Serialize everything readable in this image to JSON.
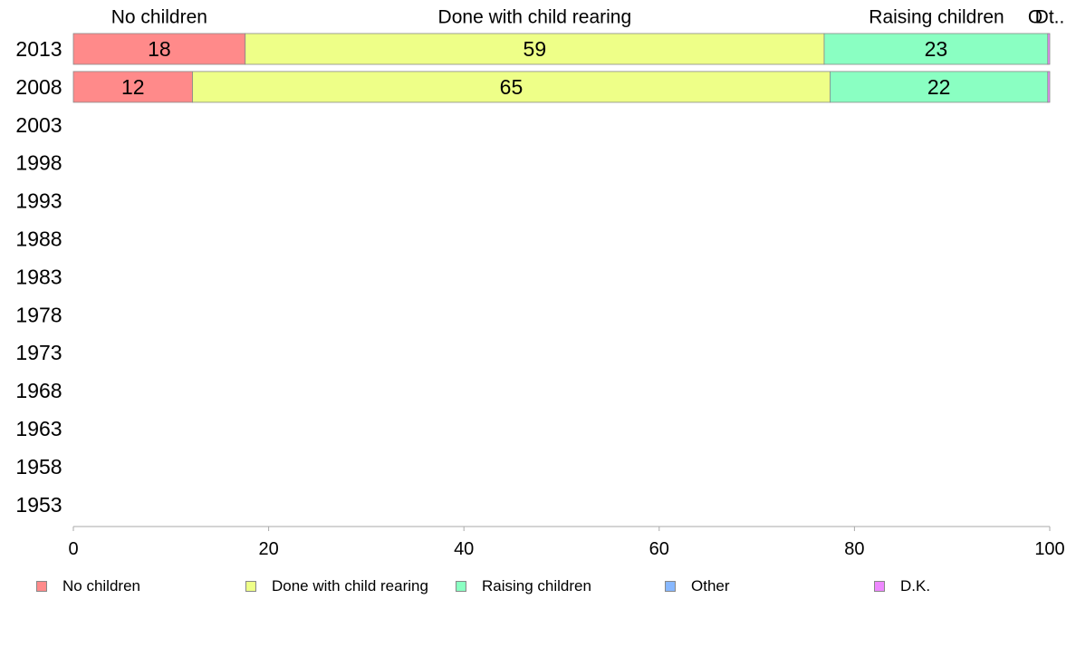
{
  "chart_data": {
    "type": "bar",
    "orientation": "horizontal",
    "stacked": true,
    "categories": [
      "2013",
      "2008",
      "2003",
      "1998",
      "1993",
      "1988",
      "1983",
      "1978",
      "1973",
      "1968",
      "1963",
      "1958",
      "1953"
    ],
    "series": [
      {
        "name": "No children",
        "color": "#ff8a8a",
        "values": [
          17.6,
          12.2,
          null,
          null,
          null,
          null,
          null,
          null,
          null,
          null,
          null,
          null,
          null
        ],
        "labels": [
          "18",
          "12",
          null,
          null,
          null,
          null,
          null,
          null,
          null,
          null,
          null,
          null,
          null
        ]
      },
      {
        "name": "Done with child rearing",
        "color": "#eeff88",
        "values": [
          59.3,
          65.3,
          null,
          null,
          null,
          null,
          null,
          null,
          null,
          null,
          null,
          null,
          null
        ],
        "labels": [
          "59",
          "65",
          null,
          null,
          null,
          null,
          null,
          null,
          null,
          null,
          null,
          null,
          null
        ]
      },
      {
        "name": "Raising children",
        "color": "#8affc2",
        "values": [
          22.9,
          22.3,
          null,
          null,
          null,
          null,
          null,
          null,
          null,
          null,
          null,
          null,
          null
        ],
        "labels": [
          "23",
          "22",
          null,
          null,
          null,
          null,
          null,
          null,
          null,
          null,
          null,
          null,
          null
        ]
      },
      {
        "name": "Other",
        "color": "#88b8ff",
        "values": [
          0.0,
          0.0,
          null,
          null,
          null,
          null,
          null,
          null,
          null,
          null,
          null,
          null,
          null
        ],
        "labels": [
          null,
          null,
          null,
          null,
          null,
          null,
          null,
          null,
          null,
          null,
          null,
          null,
          null
        ]
      },
      {
        "name": "D.K.",
        "color": "#ee88ff",
        "values": [
          0.2,
          0.2,
          null,
          null,
          null,
          null,
          null,
          null,
          null,
          null,
          null,
          null,
          null
        ],
        "labels": [
          null,
          null,
          null,
          null,
          null,
          null,
          null,
          null,
          null,
          null,
          null,
          null,
          null
        ]
      }
    ],
    "top_labels": [
      "No children",
      "Done with child rearing",
      "Raising children",
      "O",
      "Dt.."
    ],
    "xlim": [
      0,
      100
    ],
    "xticks": [
      "0",
      "20",
      "40",
      "60",
      "80",
      "100"
    ],
    "title": "",
    "xlabel": "",
    "ylabel": "",
    "grid": false,
    "legend_position": "bottom"
  }
}
